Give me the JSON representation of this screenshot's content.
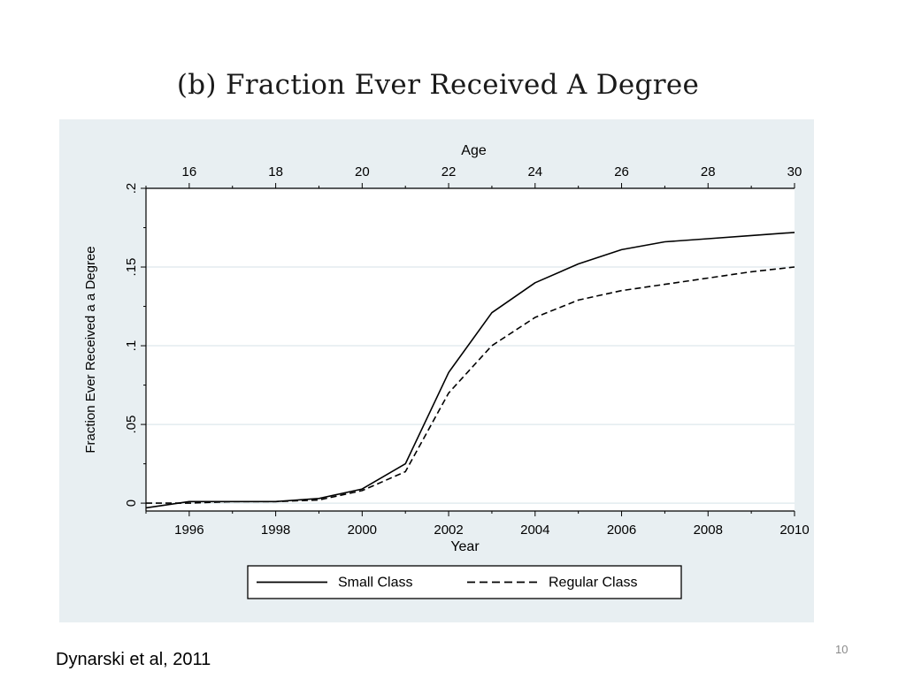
{
  "slide": {
    "title": "(b) Fraction Ever Received A Degree",
    "citation": "Dynarski et al, 2011",
    "page_number": "10"
  },
  "chart_data": {
    "type": "line",
    "title": "(b) Fraction Ever Received A Degree",
    "xlabel": "Year",
    "ylabel": "Fraction Ever Received a a Degree",
    "top_axis_label": "Age",
    "x": [
      1995,
      1996,
      1997,
      1998,
      1999,
      2000,
      2001,
      2002,
      2003,
      2004,
      2005,
      2006,
      2007,
      2008,
      2009,
      2010
    ],
    "xlim": [
      1995,
      2010
    ],
    "ylim": [
      -0.005,
      0.2
    ],
    "x_ticks": [
      1996,
      1998,
      2000,
      2002,
      2004,
      2006,
      2008,
      2010
    ],
    "x_tick_labels": [
      "1996",
      "1998",
      "2000",
      "2002",
      "2004",
      "2006",
      "2008",
      "2010"
    ],
    "x_minor_ticks": [
      1995,
      1997,
      1999,
      2001,
      2003,
      2005,
      2007,
      2009
    ],
    "y_ticks": [
      0,
      0.05,
      0.1,
      0.15,
      0.2
    ],
    "y_tick_labels": [
      "0",
      ".05",
      ".1",
      ".15",
      ".2"
    ],
    "top_axis_ticks": [
      16,
      18,
      20,
      22,
      24,
      26,
      28,
      30
    ],
    "top_axis_tick_labels": [
      "16",
      "18",
      "20",
      "22",
      "24",
      "26",
      "28",
      "30"
    ],
    "top_axis_minor_ticks": [
      15,
      17,
      19,
      21,
      23,
      25,
      27,
      29
    ],
    "age_offset": 1980,
    "grid": true,
    "legend_position": "bottom",
    "series": [
      {
        "name": "Small Class",
        "style": "solid",
        "color": "#000000",
        "values": [
          -0.003,
          0.001,
          0.001,
          0.001,
          0.003,
          0.009,
          0.025,
          0.083,
          0.121,
          0.14,
          0.152,
          0.161,
          0.166,
          0.168,
          0.17,
          0.172
        ]
      },
      {
        "name": "Regular Class",
        "style": "dashed",
        "color": "#000000",
        "values": [
          0.0,
          0.0,
          0.001,
          0.001,
          0.002,
          0.008,
          0.02,
          0.07,
          0.1,
          0.118,
          0.129,
          0.135,
          0.139,
          0.143,
          0.147,
          0.15
        ]
      }
    ]
  },
  "colors": {
    "panel_background": "#e8eff2",
    "plot_background": "#ffffff",
    "gridline": "#e3ecef",
    "axis": "#000000",
    "legend_text": "#000000"
  }
}
